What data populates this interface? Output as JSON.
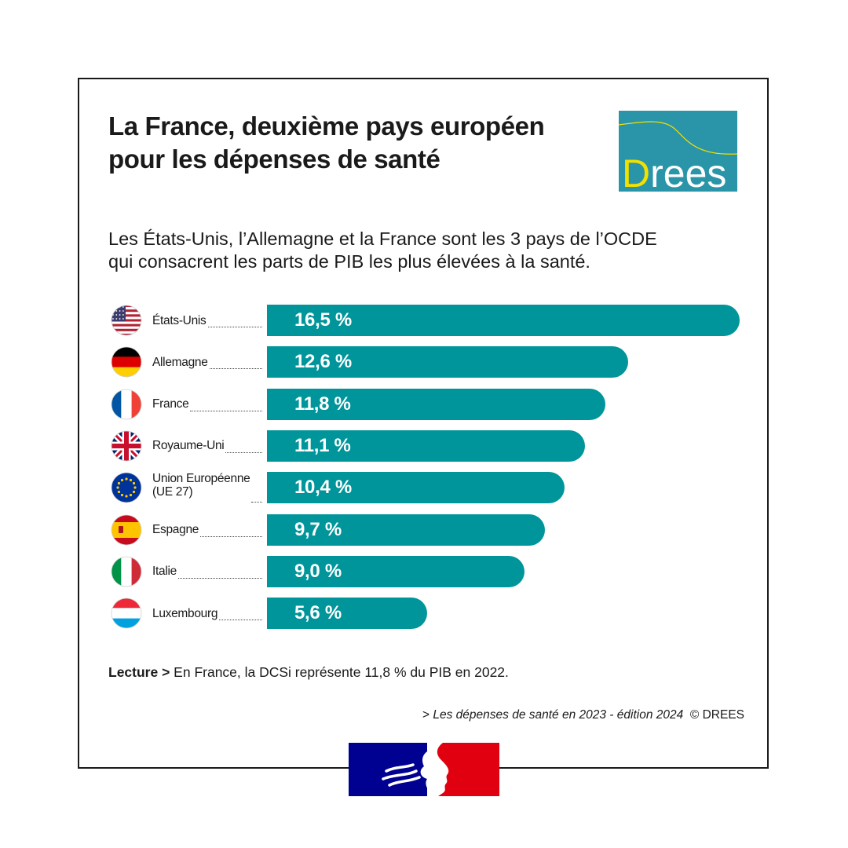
{
  "title_lines": [
    "La France, deuxième pays européen",
    "pour les dépenses de santé"
  ],
  "logo": {
    "text": "Drees",
    "colors": {
      "bg": "#2a95a8",
      "letter_d": "#f2e000",
      "letters": "#ffffff",
      "curve": "#f2e000"
    }
  },
  "subtitle_lines": [
    "Les États-Unis, l’Allemagne et la France sont les 3 pays de l’OCDE",
    "qui consacrent les parts de PIB les plus élevées à la santé."
  ],
  "chart_data": {
    "type": "bar",
    "orientation": "horizontal",
    "categories": [
      "États-Unis",
      "Allemagne",
      "France",
      "Royaume-Uni",
      "Union Européenne\n(UE 27)",
      "Espagne",
      "Italie",
      "Luxembourg"
    ],
    "values": [
      16.5,
      12.6,
      11.8,
      11.1,
      10.4,
      9.7,
      9.0,
      5.6
    ],
    "value_labels": [
      "16,5 %",
      "12,6 %",
      "11,8 %",
      "11,1 %",
      "10,4 %",
      "9,7 %",
      "9,0 %",
      "5,6 %"
    ],
    "flags": [
      "us-flag-icon",
      "germany-flag-icon",
      "france-flag-icon",
      "uk-flag-icon",
      "eu-flag-icon",
      "spain-flag-icon",
      "italy-flag-icon",
      "luxembourg-flag-icon"
    ],
    "bar_color": "#00959a",
    "xlim": [
      0,
      16.5
    ],
    "grid": false
  },
  "reading": {
    "label": "Lecture >",
    "text": " En France, la DCSi représente 11,8 % du PIB en 2022."
  },
  "source": {
    "prefix": "> ",
    "title": "Les dépenses de santé en 2023 - édition 2024",
    "credit": "  © DREES"
  },
  "footer_logo": {
    "icon": "marianne-logo",
    "colors": {
      "blue": "#000091",
      "red": "#e1000f"
    }
  }
}
